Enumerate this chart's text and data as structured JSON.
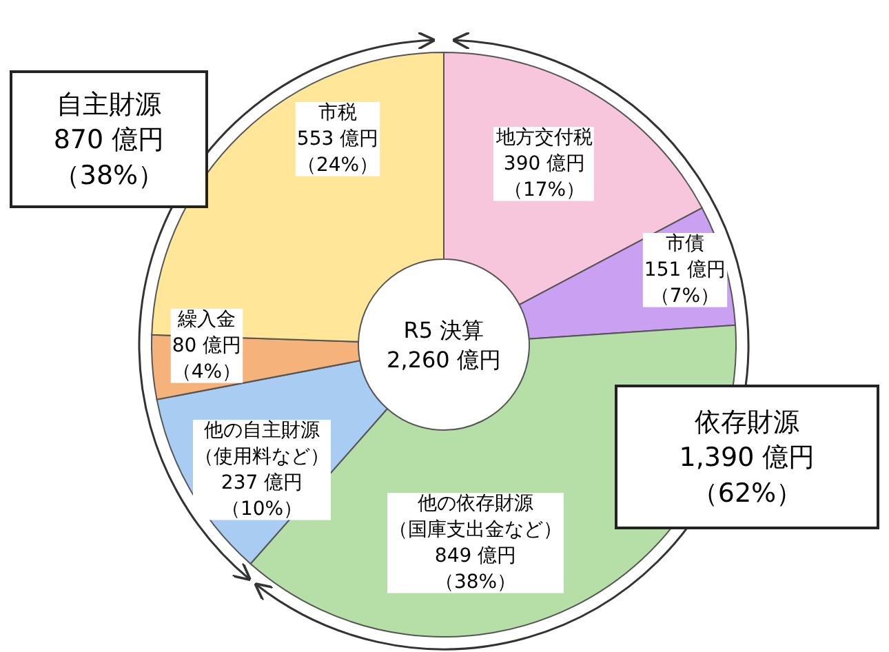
{
  "chart_data": {
    "type": "donut",
    "categories": [
      "地方交付税",
      "市債",
      "他の依存財源（国庫支出金など）",
      "他の自主財源（使用料など）",
      "繰入金",
      "市税"
    ],
    "values": [
      390,
      151,
      849,
      237,
      80,
      553
    ],
    "value_labels": [
      "390 億円（17%）",
      "151 億円（7%）",
      "849 億円（38%）",
      "237 億円（10%）",
      "80 億円（4%）",
      "553 億円（24%）"
    ],
    "colors": [
      "#f7c6dc",
      "#c9a0f2",
      "#b5dfa6",
      "#a9cdf2",
      "#f5b27a",
      "#ffe699"
    ],
    "annotations": [
      "R5 決算",
      "2,260 億円",
      "自主財源",
      "870 億円",
      "（38%）",
      "依存財源",
      "1,390 億円",
      "（62%）"
    ]
  }
}
